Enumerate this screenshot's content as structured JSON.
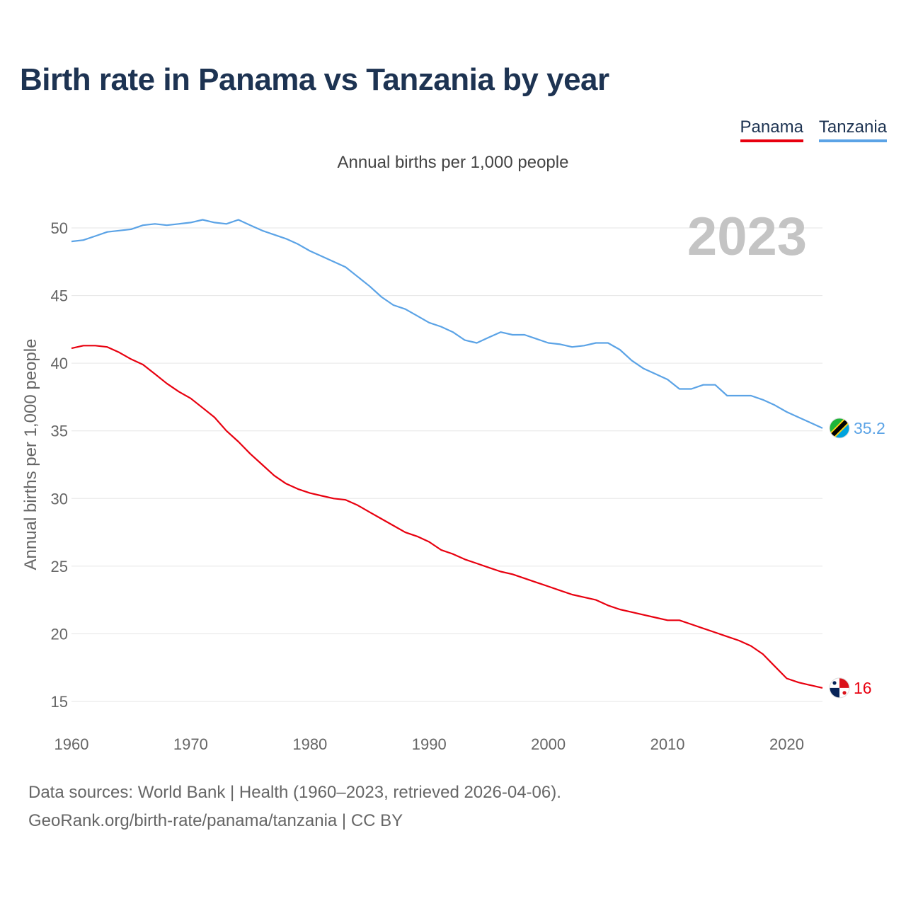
{
  "header": {
    "title": "Birth rate in Panama vs Tanzania by year",
    "subtitle": "Annual births per 1,000 people"
  },
  "legend": [
    {
      "name": "Panama",
      "color": "#e8000f"
    },
    {
      "name": "Tanzania",
      "color": "#5ba3e6"
    }
  ],
  "year_label": "2023",
  "footer": {
    "sources": "Data sources: World Bank | Health (1960–2023, retrieved 2026-04-06).",
    "credit": "GeoRank.org/birth-rate/panama/tanzania | CC BY"
  },
  "chart_data": {
    "type": "line",
    "title": "Birth rate in Panama vs Tanzania by year",
    "ylabel": "Annual births per 1,000 people",
    "xlabel": "",
    "xlim": [
      1960,
      2023
    ],
    "ylim": [
      13,
      53
    ],
    "x_ticks": [
      1960,
      1970,
      1980,
      1990,
      2000,
      2010,
      2020
    ],
    "y_ticks": [
      15,
      20,
      25,
      30,
      35,
      40,
      45,
      50
    ],
    "series": [
      {
        "name": "Panama",
        "color": "#e8000f",
        "end_label": "16",
        "flag": "panama-flag-icon",
        "x": [
          1960,
          1961,
          1962,
          1963,
          1964,
          1965,
          1966,
          1967,
          1968,
          1969,
          1970,
          1971,
          1972,
          1973,
          1974,
          1975,
          1976,
          1977,
          1978,
          1979,
          1980,
          1981,
          1982,
          1983,
          1984,
          1985,
          1986,
          1987,
          1988,
          1989,
          1990,
          1991,
          1992,
          1993,
          1994,
          1995,
          1996,
          1997,
          1998,
          1999,
          2000,
          2001,
          2002,
          2003,
          2004,
          2005,
          2006,
          2007,
          2008,
          2009,
          2010,
          2011,
          2012,
          2013,
          2014,
          2015,
          2016,
          2017,
          2018,
          2019,
          2020,
          2021,
          2022,
          2023
        ],
        "values": [
          41.1,
          41.3,
          41.3,
          41.2,
          40.8,
          40.3,
          39.9,
          39.2,
          38.5,
          37.9,
          37.4,
          36.7,
          36.0,
          35.0,
          34.2,
          33.3,
          32.5,
          31.7,
          31.1,
          30.7,
          30.4,
          30.2,
          30.0,
          29.9,
          29.5,
          29.0,
          28.5,
          28.0,
          27.5,
          27.2,
          26.8,
          26.2,
          25.9,
          25.5,
          25.2,
          24.9,
          24.6,
          24.4,
          24.1,
          23.8,
          23.5,
          23.2,
          22.9,
          22.7,
          22.5,
          22.1,
          21.8,
          21.6,
          21.4,
          21.2,
          21.0,
          21.0,
          20.7,
          20.4,
          20.1,
          19.8,
          19.5,
          19.1,
          18.5,
          17.6,
          16.7,
          16.4,
          16.2,
          16.0
        ]
      },
      {
        "name": "Tanzania",
        "color": "#5ba3e6",
        "end_label": "35.2",
        "flag": "tanzania-flag-icon",
        "x": [
          1960,
          1961,
          1962,
          1963,
          1964,
          1965,
          1966,
          1967,
          1968,
          1969,
          1970,
          1971,
          1972,
          1973,
          1974,
          1975,
          1976,
          1977,
          1978,
          1979,
          1980,
          1981,
          1982,
          1983,
          1984,
          1985,
          1986,
          1987,
          1988,
          1989,
          1990,
          1991,
          1992,
          1993,
          1994,
          1995,
          1996,
          1997,
          1998,
          1999,
          2000,
          2001,
          2002,
          2003,
          2004,
          2005,
          2006,
          2007,
          2008,
          2009,
          2010,
          2011,
          2012,
          2013,
          2014,
          2015,
          2016,
          2017,
          2018,
          2019,
          2020,
          2021,
          2022,
          2023
        ],
        "values": [
          49.0,
          49.1,
          49.4,
          49.7,
          49.8,
          49.9,
          50.2,
          50.3,
          50.2,
          50.3,
          50.4,
          50.6,
          50.4,
          50.3,
          50.6,
          50.2,
          49.8,
          49.5,
          49.2,
          48.8,
          48.3,
          47.9,
          47.5,
          47.1,
          46.4,
          45.7,
          44.9,
          44.3,
          44.0,
          43.5,
          43.0,
          42.7,
          42.3,
          41.7,
          41.5,
          41.9,
          42.3,
          42.1,
          42.1,
          41.8,
          41.5,
          41.4,
          41.2,
          41.3,
          41.5,
          41.5,
          41.0,
          40.2,
          39.6,
          39.2,
          38.8,
          38.1,
          38.1,
          38.4,
          38.4,
          37.6,
          37.6,
          37.6,
          37.3,
          36.9,
          36.4,
          36.0,
          35.6,
          35.2
        ]
      }
    ]
  }
}
